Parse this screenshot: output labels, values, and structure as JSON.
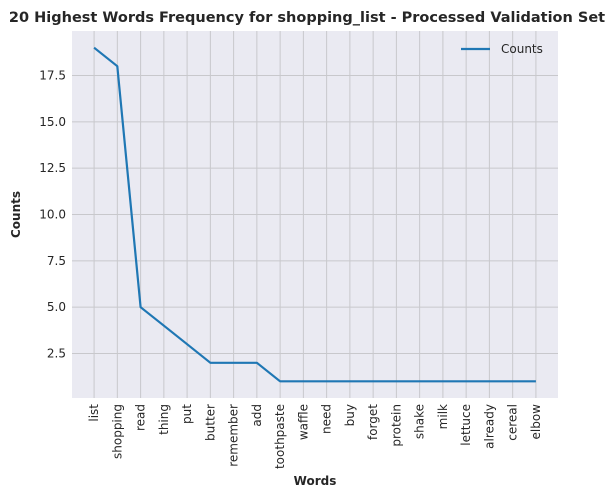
{
  "chart_data": {
    "type": "line",
    "title": "20 Highest Words Frequency for shopping_list - Processed Validation Set",
    "xlabel": "Words",
    "ylabel": "Counts",
    "categories": [
      "list",
      "shopping",
      "read",
      "thing",
      "put",
      "butter",
      "remember",
      "add",
      "toothpaste",
      "waffle",
      "need",
      "buy",
      "forget",
      "protein",
      "shake",
      "milk",
      "lettuce",
      "already",
      "cereal",
      "elbow"
    ],
    "series": [
      {
        "name": "Counts",
        "values": [
          19,
          18,
          5,
          4,
          3,
          2,
          2,
          2,
          1,
          1,
          1,
          1,
          1,
          1,
          1,
          1,
          1,
          1,
          1,
          1
        ]
      }
    ],
    "ylim": [
      0.1,
      19.9
    ],
    "yticks": [
      2.5,
      5.0,
      7.5,
      10.0,
      12.5,
      15.0,
      17.5
    ],
    "ytick_labels": [
      "2.5",
      "5.0",
      "7.5",
      "10.0",
      "12.5",
      "15.0",
      "17.5"
    ],
    "grid": true,
    "legend_position": "top-right",
    "colors": {
      "line": "#1f77b4",
      "background": "#eaeaf2",
      "grid": "#c8c8cc"
    }
  }
}
